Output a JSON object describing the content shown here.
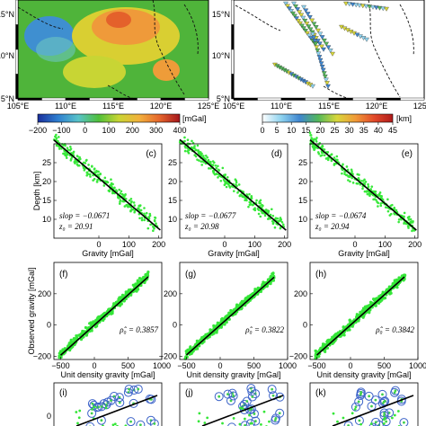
{
  "maps": {
    "lon_ticks": [
      "105°E",
      "110°E",
      "115°E",
      "120°E",
      "125°E"
    ],
    "lat_ticks": [
      "15°N",
      "10°N",
      "5°N"
    ],
    "colorbar_gravity": {
      "ticks": [
        "−200",
        "−100",
        "0",
        "100",
        "200",
        "300",
        "400"
      ],
      "unit": "[mGal]",
      "colors": [
        "#1a2f9c",
        "#2f7fd0",
        "#58c3c9",
        "#4fbf3a",
        "#c9d534",
        "#f2b13c",
        "#e5662c",
        "#a4151c"
      ]
    },
    "colorbar_depth": {
      "ticks": [
        "0",
        "5",
        "10",
        "15",
        "20",
        "25",
        "30",
        "35",
        "40",
        "45"
      ],
      "unit": "[km]",
      "colors": [
        "#ffffff",
        "#8fd3ef",
        "#3f86cf",
        "#53b85a",
        "#d8d73b",
        "#f09a38",
        "#e24a2a",
        "#b01b1b"
      ]
    }
  },
  "chart_data": [
    {
      "type": "scatter",
      "panel": "(c)",
      "xlabel": "Gravity [mGal]",
      "ylabel": "Depth [km]",
      "xlim": [
        -150,
        210
      ],
      "ylim": [
        5,
        30
      ],
      "xticks": [
        "0",
        "100",
        "200"
      ],
      "yticks": [
        "10",
        "15",
        "20",
        "25"
      ],
      "slope_label": "slop = −0.0671",
      "z0_label": "z₀ = 20.91",
      "slope": -0.0671,
      "z0": 20.91,
      "points_x_range": [
        -150,
        200
      ],
      "n_points": 260
    },
    {
      "type": "scatter",
      "panel": "(d)",
      "xlabel": "Gravity [mGal]",
      "ylabel": "",
      "xlim": [
        -150,
        210
      ],
      "ylim": [
        5,
        30
      ],
      "xticks": [
        "0",
        "100",
        "200"
      ],
      "yticks": [
        "10",
        "15",
        "20",
        "25"
      ],
      "slope_label": "slop = −0.0677",
      "z0_label": "z₀ = 20.98",
      "slope": -0.0677,
      "z0": 20.98,
      "points_x_range": [
        -150,
        200
      ],
      "n_points": 260
    },
    {
      "type": "scatter",
      "panel": "(e)",
      "xlabel": "Gravity [mGal]",
      "ylabel": "",
      "xlim": [
        -150,
        210
      ],
      "ylim": [
        5,
        30
      ],
      "xticks": [
        "0",
        "100",
        "200"
      ],
      "yticks": [
        "10",
        "15",
        "20",
        "25"
      ],
      "slope_label": "slop = −0.0674",
      "z0_label": "z₀ = 20.94",
      "slope": -0.0674,
      "z0": 20.94,
      "points_x_range": [
        -150,
        200
      ],
      "n_points": 260
    },
    {
      "type": "scatter",
      "panel": "(f)",
      "xlabel": "Unit density gravity [mGal]",
      "ylabel": "Observed gravity [mGal]",
      "xlim": [
        -600,
        1000
      ],
      "ylim": [
        -220,
        400
      ],
      "xticks": [
        "−500",
        "0",
        "500",
        "1000"
      ],
      "yticks": [
        "−200",
        "0",
        "200"
      ],
      "rho_label": "ρ̂₀ = 0.3857",
      "rho": 0.3857
    },
    {
      "type": "scatter",
      "panel": "(g)",
      "xlabel": "Unit density gravity [mGal]",
      "ylabel": "",
      "xlim": [
        -600,
        1000
      ],
      "ylim": [
        -220,
        400
      ],
      "xticks": [
        "−500",
        "0",
        "500",
        "1000"
      ],
      "yticks": [
        "−200",
        "0",
        "200"
      ],
      "rho_label": "ρ̂₀ = 0.3822",
      "rho": 0.3822
    },
    {
      "type": "scatter",
      "panel": "(h)",
      "xlabel": "Unit density gravity [mGal]",
      "ylabel": "",
      "xlim": [
        -600,
        1000
      ],
      "ylim": [
        -220,
        400
      ],
      "xticks": [
        "−500",
        "0",
        "500",
        "1000"
      ],
      "yticks": [
        "−200",
        "0",
        "200"
      ],
      "rho_label": "ρ̂₀ = 0.3842",
      "rho": 0.3842
    },
    {
      "type": "scatter",
      "panel": "(i)",
      "yticks": [
        "0"
      ]
    },
    {
      "type": "scatter",
      "panel": "(j)"
    },
    {
      "type": "scatter",
      "panel": "(k)"
    }
  ]
}
